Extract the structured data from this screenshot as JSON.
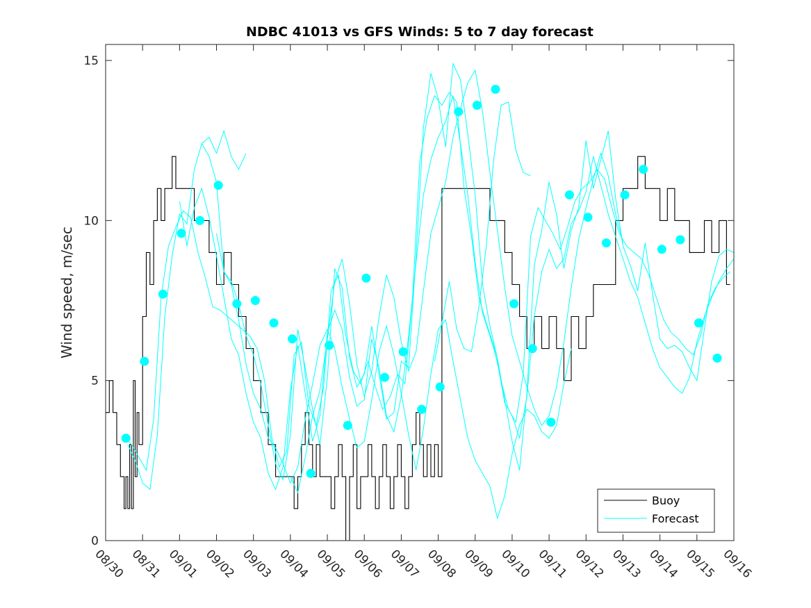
{
  "colors": {
    "buoy": "#000000",
    "forecast": "#00FFFF",
    "axis": "#262626"
  },
  "chart_data": {
    "type": "line",
    "title": "NDBC 41013 vs GFS Winds: 5 to 7 day forecast",
    "xlabel": "",
    "ylabel": "Wind speed, m/sec",
    "xlim": [
      0,
      17
    ],
    "ylim": [
      0,
      15.5
    ],
    "xticks": [
      0,
      1,
      2,
      3,
      4,
      5,
      6,
      7,
      8,
      9,
      10,
      11,
      12,
      13,
      14,
      15,
      16,
      17
    ],
    "xticklabels": [
      "08/30",
      "08/31",
      "09/01",
      "09/02",
      "09/03",
      "09/04",
      "09/05",
      "09/06",
      "09/07",
      "09/08",
      "09/09",
      "09/10",
      "09/11",
      "09/12",
      "09/13",
      "09/14",
      "09/15",
      "09/16"
    ],
    "yticks": [
      0,
      5,
      10,
      15
    ],
    "yticklabels": [
      "0",
      "5",
      "10",
      "15"
    ],
    "legend": {
      "position": "bottom-right",
      "entries": [
        "Buoy",
        "Forecast"
      ]
    },
    "series": [
      {
        "name": "Buoy",
        "style": "step",
        "x": [
          0.0,
          0.1,
          0.2,
          0.3,
          0.4,
          0.5,
          0.55,
          0.6,
          0.65,
          0.7,
          0.75,
          0.8,
          0.85,
          0.9,
          1.0,
          1.1,
          1.2,
          1.3,
          1.4,
          1.5,
          1.6,
          1.7,
          1.8,
          1.9,
          2.0,
          2.1,
          2.2,
          2.4,
          2.6,
          2.8,
          3.0,
          3.2,
          3.4,
          3.6,
          3.8,
          4.0,
          4.2,
          4.4,
          4.6,
          4.8,
          5.0,
          5.1,
          5.2,
          5.3,
          5.4,
          5.5,
          5.6,
          5.7,
          5.8,
          5.9,
          6.0,
          6.1,
          6.2,
          6.3,
          6.4,
          6.5,
          6.6,
          6.7,
          6.8,
          6.9,
          7.0,
          7.1,
          7.2,
          7.3,
          7.4,
          7.5,
          7.6,
          7.7,
          7.8,
          7.9,
          8.0,
          8.1,
          8.2,
          8.3,
          8.4,
          8.5,
          8.6,
          8.7,
          8.8,
          8.9,
          9.0,
          9.1,
          9.2,
          9.4,
          9.6,
          9.8,
          10.0,
          10.2,
          10.4,
          10.6,
          10.8,
          11.0,
          11.2,
          11.4,
          11.6,
          11.8,
          12.0,
          12.2,
          12.4,
          12.6,
          12.8,
          13.0,
          13.2,
          13.4,
          13.6,
          13.8,
          14.0,
          14.2,
          14.4,
          14.6,
          14.8,
          15.0,
          15.2,
          15.4,
          15.6,
          15.8,
          16.0,
          16.2,
          16.4,
          16.6,
          16.8
        ],
        "values": [
          4,
          5,
          4,
          3,
          2,
          1,
          2,
          1,
          3,
          1,
          5,
          2,
          4,
          3,
          7,
          9,
          8,
          10,
          11,
          10,
          11,
          11,
          12,
          11,
          11,
          11,
          11,
          10,
          10,
          9,
          8,
          9,
          8,
          7,
          6,
          5,
          4,
          3,
          2,
          2,
          2,
          1,
          2,
          3,
          4,
          3,
          2,
          3,
          2,
          2,
          2,
          1,
          2,
          3,
          2,
          0,
          2,
          3,
          1,
          2,
          2,
          3,
          2,
          1,
          2,
          3,
          2,
          1,
          2,
          3,
          2,
          1,
          2,
          3,
          4,
          3,
          2,
          3,
          2,
          3,
          2,
          11,
          11,
          11,
          11,
          11,
          11,
          11,
          10,
          10,
          9,
          8,
          7,
          6,
          7,
          6,
          7,
          6,
          5,
          7,
          6,
          7,
          8,
          8,
          8,
          10,
          11,
          11,
          12,
          11,
          11,
          10,
          11,
          10,
          10,
          9,
          9,
          10,
          9,
          10,
          8
        ]
      },
      {
        "name": "Forecast",
        "x": [
          0.55,
          0.7,
          0.9,
          1.1,
          1.3,
          1.5,
          1.7,
          1.9,
          2.1,
          2.3,
          2.5,
          2.7,
          2.9,
          3.1,
          3.3,
          3.5,
          3.7,
          3.9,
          4.1,
          4.3,
          4.5,
          4.7,
          4.9,
          5.1,
          5.3,
          5.5,
          5.7,
          5.9,
          6.1,
          6.3,
          6.5,
          6.7,
          6.9,
          7.1,
          7.3,
          7.5,
          7.7,
          7.9,
          8.1,
          8.3,
          8.5,
          8.7,
          8.9,
          9.1,
          9.3,
          9.5,
          9.7,
          9.9,
          10.1,
          10.3,
          10.5,
          10.7,
          10.9,
          11.1,
          11.3,
          11.5,
          11.7,
          11.9,
          12.1,
          12.3,
          12.5,
          12.7,
          12.9,
          13.1,
          13.3,
          13.5,
          13.7,
          13.9,
          14.1,
          14.3,
          14.5,
          14.7,
          14.9,
          15.1,
          15.3,
          15.5,
          15.7,
          15.9,
          16.1,
          16.3,
          16.5,
          16.7,
          16.9
        ],
        "values": [
          3.2,
          3.0,
          2.6,
          2.2,
          3.8,
          7.6,
          9.2,
          9.8,
          10.3,
          10.1,
          9.0,
          8.2,
          7.3,
          7.2,
          7.0,
          6.8,
          6.6,
          6.4,
          6.0,
          5.0,
          3.2,
          2.3,
          2.8,
          5.8,
          6.2,
          4.2,
          3.6,
          4.8,
          7.8,
          8.3,
          6.4,
          5.3,
          4.9,
          5.6,
          4.8,
          4.1,
          4.5,
          5.2,
          4.9,
          7.5,
          11.8,
          13.2,
          13.9,
          13.6,
          14.0,
          13.7,
          11.0,
          9.5,
          7.6,
          6.8,
          6.1,
          5.0,
          4.1,
          3.7,
          5.2,
          9.5,
          10.4,
          10.0,
          9.6,
          9.1,
          9.8,
          10.6,
          11.0,
          11.2,
          11.6,
          11.3,
          10.4,
          9.6,
          9.2,
          9.0,
          8.8,
          8.3,
          7.6,
          6.9,
          6.5,
          6.3,
          6.0,
          5.8,
          6.4,
          7.4,
          7.9,
          8.2,
          8.4
        ]
      },
      {
        "name": "Forecast",
        "x": [
          0.6,
          0.8,
          1.0,
          1.2,
          1.4,
          1.6,
          1.8,
          2.0,
          2.2,
          2.4,
          2.6,
          2.8,
          3.0,
          3.2,
          3.4,
          3.6,
          3.8,
          4.0,
          4.2,
          4.4,
          4.6,
          4.8,
          5.0,
          5.2,
          5.4,
          5.6,
          5.8,
          6.0,
          6.2,
          6.4,
          6.6,
          6.8,
          7.0,
          7.2,
          7.4,
          7.6,
          7.8,
          8.0,
          8.2,
          8.4,
          8.6,
          8.8,
          9.0,
          9.2,
          9.4,
          9.6,
          9.8,
          10.0,
          10.2,
          10.4,
          10.6,
          10.8,
          11.0,
          11.2,
          11.4,
          11.6,
          11.8,
          12.0,
          12.2,
          12.4,
          12.6,
          12.8,
          13.0,
          13.2,
          13.4,
          13.6,
          13.8,
          14.0,
          14.2,
          14.4,
          14.6,
          14.8,
          15.0,
          15.2,
          15.4,
          15.6,
          15.8,
          16.0,
          16.2,
          16.4,
          16.6,
          16.8,
          17.0
        ],
        "values": [
          3.0,
          2.5,
          1.8,
          1.6,
          3.3,
          7.0,
          8.9,
          10.2,
          9.9,
          11.6,
          12.4,
          12.0,
          11.2,
          8.4,
          8.1,
          7.4,
          6.4,
          5.8,
          4.9,
          3.6,
          2.4,
          1.9,
          3.3,
          6.6,
          5.4,
          4.1,
          3.0,
          5.1,
          8.5,
          7.9,
          5.7,
          4.8,
          5.2,
          6.7,
          5.2,
          3.8,
          4.0,
          5.6,
          5.4,
          8.9,
          12.9,
          14.6,
          13.8,
          12.3,
          14.9,
          14.4,
          12.7,
          10.8,
          8.0,
          6.7,
          5.7,
          4.4,
          3.1,
          2.2,
          4.6,
          8.6,
          9.7,
          11.2,
          10.2,
          8.5,
          9.7,
          10.4,
          12.5,
          11.0,
          11.9,
          12.8,
          10.7,
          9.2,
          8.6,
          7.8,
          9.3,
          7.7,
          6.3,
          6.0,
          6.1,
          5.9,
          5.4,
          5.0,
          6.6,
          8.1,
          8.9,
          9.1,
          9.0
        ]
      },
      {
        "name": "Forecast",
        "x": [
          2.0,
          2.2,
          2.4,
          2.6,
          2.8,
          3.0,
          3.2,
          3.4,
          3.6,
          3.8,
          4.0,
          4.2,
          4.4,
          4.6,
          4.8,
          5.0,
          5.2,
          5.4,
          5.6,
          5.8,
          6.0,
          6.2,
          6.4,
          6.6,
          6.8,
          7.0,
          7.2,
          7.4,
          7.6,
          7.8,
          8.0,
          8.2,
          8.4,
          8.6,
          8.8,
          9.0,
          9.2,
          9.4,
          9.6,
          9.8,
          10.0,
          10.2,
          10.4,
          10.6,
          10.8,
          11.0,
          11.2,
          11.4,
          11.6,
          11.8,
          12.0,
          12.2,
          12.4,
          12.6,
          12.8,
          13.0,
          13.2,
          13.4,
          13.6,
          13.8,
          14.0,
          14.2,
          14.4,
          14.6,
          14.8,
          15.0,
          15.2,
          15.4,
          15.6,
          15.8,
          16.0,
          16.2,
          16.4,
          16.6,
          16.8,
          17.0
        ],
        "values": [
          10.6,
          9.2,
          10.4,
          11.0,
          10.1,
          8.9,
          7.6,
          6.3,
          5.8,
          4.6,
          3.7,
          3.2,
          2.1,
          1.6,
          2.3,
          4.7,
          6.1,
          4.6,
          3.1,
          3.9,
          6.5,
          7.2,
          6.6,
          5.1,
          4.2,
          4.4,
          6.3,
          5.4,
          3.9,
          3.4,
          4.5,
          6.4,
          8.7,
          10.8,
          11.9,
          12.6,
          13.1,
          13.9,
          12.4,
          10.8,
          8.7,
          7.1,
          6.4,
          5.6,
          4.3,
          3.9,
          3.2,
          4.5,
          7.0,
          8.4,
          9.1,
          8.5,
          8.8,
          9.9,
          10.3,
          10.9,
          12.0,
          11.1,
          10.2,
          9.5,
          8.8,
          8.1,
          7.6,
          6.8,
          6.0,
          5.4,
          5.1,
          4.8,
          4.6,
          5.1,
          6.2,
          7.0,
          7.6,
          8.1,
          8.5,
          8.8
        ]
      },
      {
        "name": "Forecast",
        "x": [
          5.0,
          5.2,
          5.4,
          5.6,
          5.8,
          6.0,
          6.2,
          6.4,
          6.6,
          6.8,
          7.0,
          7.2,
          7.4,
          7.6,
          7.8,
          8.0,
          8.2,
          8.4,
          8.6,
          8.8,
          9.0,
          9.2,
          9.4,
          9.6,
          9.8,
          10.0,
          10.2,
          10.4,
          10.6,
          10.8,
          11.0,
          11.2,
          11.4,
          11.6,
          11.8,
          12.0,
          12.2,
          12.4,
          12.6,
          12.8,
          13.0,
          13.2,
          13.4,
          13.6,
          13.8,
          14.0
        ],
        "values": [
          2.0,
          1.5,
          2.6,
          3.9,
          4.7,
          6.3,
          8.1,
          8.8,
          7.4,
          5.5,
          4.5,
          5.3,
          7.0,
          8.3,
          7.6,
          6.2,
          5.3,
          5.9,
          7.8,
          9.6,
          10.4,
          11.2,
          12.6,
          13.5,
          14.3,
          14.7,
          13.4,
          11.5,
          9.7,
          7.9,
          6.4,
          5.6,
          4.8,
          4.1,
          3.6,
          3.9,
          4.8,
          6.2,
          7.9,
          9.4,
          10.4,
          11.3,
          12.1,
          11.4,
          10.2,
          9.3
        ]
      },
      {
        "name": "Forecast",
        "x": [
          8.9,
          9.1,
          9.3,
          9.5,
          9.7,
          9.9,
          10.1,
          10.3,
          10.5,
          10.7,
          10.9,
          11.1,
          11.3,
          11.5
        ],
        "values": [
          5.6,
          6.8,
          8.1,
          6.6,
          6.0,
          5.9,
          7.3,
          9.2,
          11.9,
          13.6,
          13.7,
          12.2,
          11.5,
          11.4
        ]
      },
      {
        "name": "Forecast",
        "x": [
          3.0,
          3.2,
          3.4,
          3.6,
          3.8,
          4.0,
          4.2,
          4.4,
          4.6,
          4.8,
          5.0,
          5.2,
          5.4,
          5.6,
          5.8,
          6.0,
          6.2,
          6.4,
          6.6,
          6.8,
          7.0,
          7.2,
          7.4,
          7.6,
          7.8,
          8.0,
          8.2,
          8.4,
          8.6,
          8.8,
          9.0,
          9.2,
          9.4,
          9.6,
          9.8,
          10.0,
          10.2,
          10.4,
          10.6,
          10.8,
          11.0,
          11.2,
          11.4,
          11.6,
          11.8,
          12.0,
          12.2,
          12.4,
          12.6
        ],
        "values": [
          9.6,
          8.4,
          8.0,
          6.9,
          5.5,
          4.6,
          4.1,
          3.2,
          2.9,
          2.4,
          1.8,
          2.3,
          3.8,
          4.9,
          6.1,
          6.6,
          6.0,
          4.8,
          3.8,
          2.9,
          3.1,
          4.4,
          5.9,
          6.7,
          5.8,
          4.6,
          3.3,
          2.2,
          3.5,
          5.2,
          6.6,
          6.9,
          5.6,
          4.4,
          3.2,
          2.5,
          2.1,
          1.7,
          0.7,
          1.4,
          2.7,
          3.6,
          4.1,
          3.9,
          3.4,
          3.2,
          3.6,
          4.9,
          6.0
        ]
      },
      {
        "name": "Forecast",
        "x": [
          2.6,
          2.8,
          3.0,
          3.2,
          3.4,
          3.6,
          3.8
        ],
        "values": [
          12.4,
          12.6,
          12.1,
          12.8,
          12.0,
          11.6,
          12.1
        ]
      }
    ],
    "markers": {
      "name": "Forecast",
      "x": [
        0.55,
        1.05,
        1.55,
        2.05,
        2.55,
        3.05,
        3.55,
        4.05,
        4.55,
        5.05,
        5.55,
        6.05,
        6.55,
        7.05,
        7.55,
        8.05,
        8.55,
        9.05,
        9.55,
        10.05,
        10.55,
        11.05,
        11.55,
        12.05,
        12.55,
        13.05,
        13.55,
        14.05,
        14.55,
        15.05,
        15.55,
        16.05,
        16.55
      ],
      "values": [
        3.2,
        5.6,
        7.7,
        9.6,
        10.0,
        11.1,
        7.4,
        7.5,
        6.8,
        6.3,
        2.1,
        6.1,
        3.6,
        8.2,
        5.1,
        5.9,
        4.1,
        4.8,
        13.4,
        13.6,
        14.1,
        7.4,
        6.0,
        3.7,
        10.8,
        10.1,
        9.3,
        10.8,
        11.6,
        9.1,
        9.4,
        6.8,
        5.7
      ]
    }
  }
}
